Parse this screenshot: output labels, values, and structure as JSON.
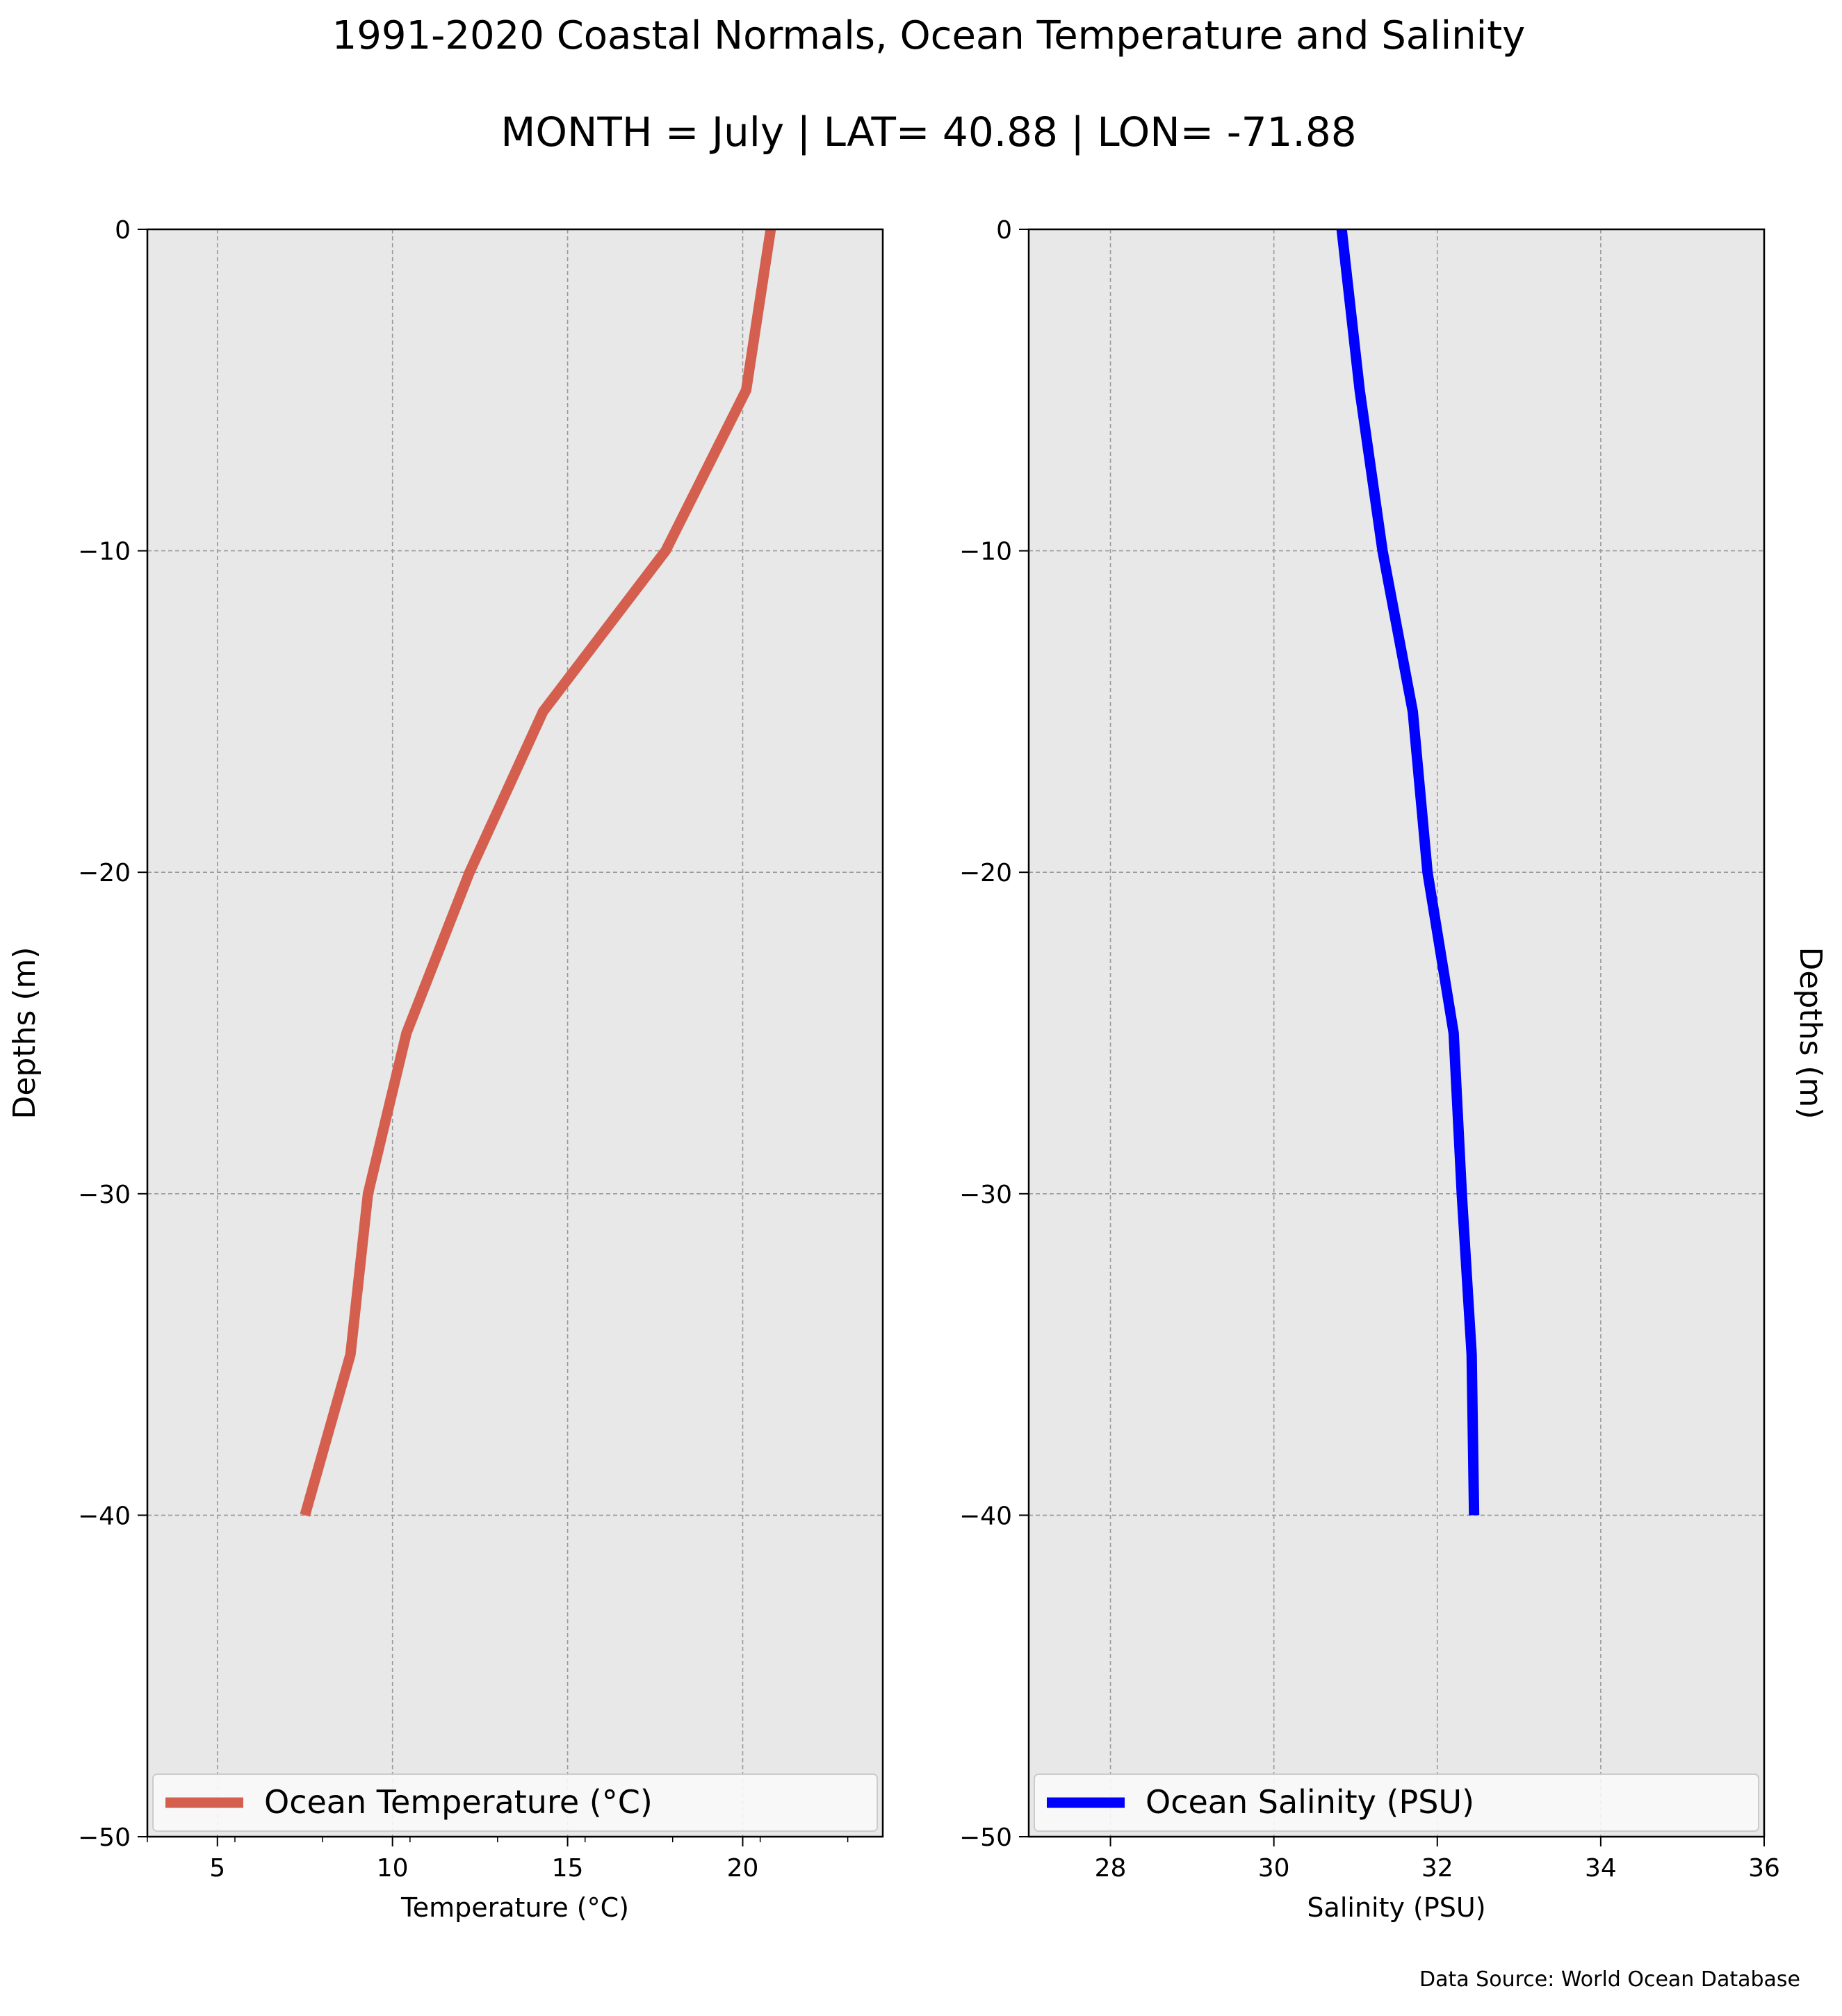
{
  "figure": {
    "title": "1991-2020 Coastal Normals, Ocean Temperature and Salinity",
    "subtitle": "MONTH = July | LAT= 40.88 | LON= -71.88",
    "source": "Data Source: World Ocean Database",
    "background": "#ffffff",
    "axes_background": "#e8e8e8"
  },
  "chart_data": [
    {
      "type": "line",
      "xlabel": "Temperature ($^\\circ$C)",
      "xlabel_display": "Temperature (°C)",
      "ylabel": "Depths (m)",
      "ylabel_side": "left",
      "xlim": [
        3,
        24
      ],
      "ylim": [
        -50,
        0
      ],
      "x_ticks": [
        5,
        10,
        15,
        20
      ],
      "x_tick_labels": [
        "5",
        "10",
        "15",
        "20"
      ],
      "y_ticks": [
        0,
        -10,
        -20,
        -30,
        -40,
        -50
      ],
      "y_tick_labels": [
        "0",
        "−10",
        "−20",
        "−30",
        "−40",
        "−50"
      ],
      "grid": true,
      "legend": "lower-center",
      "series": [
        {
          "name": "Ocean Temperature ($^\\circ$C)",
          "display_name": "Ocean Temperature (°C)",
          "color": "#d45f4f",
          "x": [
            20.8,
            20.1,
            17.8,
            14.3,
            12.2,
            10.4,
            9.3,
            8.8,
            7.5
          ],
          "y": [
            0,
            -5,
            -10,
            -15,
            -20,
            -25,
            -30,
            -35,
            -40
          ]
        }
      ]
    },
    {
      "type": "line",
      "xlabel": "Salinity (PSU)",
      "ylabel": "Depths (m)",
      "ylabel_side": "right",
      "xlim": [
        27,
        36
      ],
      "ylim": [
        -50,
        0
      ],
      "x_ticks": [
        28,
        30,
        32,
        34,
        36
      ],
      "x_tick_labels": [
        "28",
        "30",
        "32",
        "34",
        "36"
      ],
      "y_ticks": [
        0,
        -10,
        -20,
        -30,
        -40,
        -50
      ],
      "y_tick_labels": [
        "0",
        "−10",
        "−20",
        "−30",
        "−40",
        "−50"
      ],
      "grid": true,
      "legend": "lower-center",
      "series": [
        {
          "name": "Ocean Salinity (PSU)",
          "color": "#0000ff",
          "x": [
            30.83,
            31.05,
            31.33,
            31.7,
            31.88,
            32.2,
            32.3,
            32.42,
            32.45
          ],
          "y": [
            0,
            -5,
            -10,
            -15,
            -20,
            -25,
            -30,
            -35,
            -40
          ]
        }
      ]
    }
  ]
}
